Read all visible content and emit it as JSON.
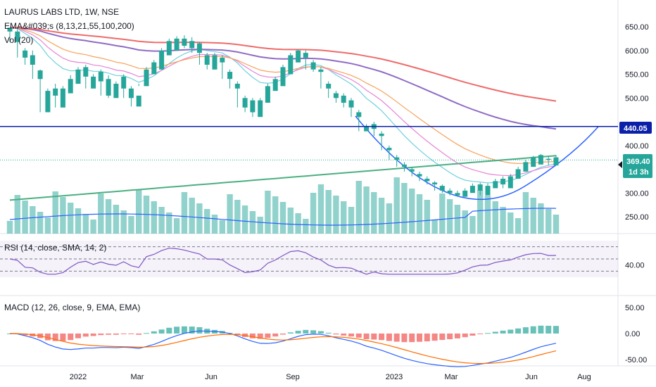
{
  "chart_data": {
    "type": "candlestick",
    "legend": {
      "title": "LAURUS LABS LTD, 1W, NSE",
      "ema": "EMA&#039;s (8,13,21,55,100,200)",
      "vol": "Vol (20)",
      "rsi": "RSI (14, close, SMA, 14, 2)",
      "macd": "MACD (12, 26, close, 9, EMA, EMA)"
    },
    "price_axis": {
      "ticks": [
        "650.00",
        "600.00",
        "550.00",
        "500.00",
        "400.00",
        "300.00",
        "250.00"
      ],
      "tick_values": [
        650,
        600,
        550,
        500,
        400,
        300,
        250
      ],
      "range": [
        195,
        710
      ]
    },
    "rsi_axis": {
      "ticks": [
        "40.00"
      ],
      "tick_values": [
        40
      ],
      "range": [
        20,
        80
      ],
      "bands": [
        30,
        50,
        70
      ]
    },
    "macd_axis": {
      "ticks": [
        "50.00",
        "0.00",
        "-50.00"
      ],
      "tick_values": [
        50,
        0,
        -50
      ],
      "range": [
        -62,
        62
      ]
    },
    "x_axis": {
      "labels": [
        "2022",
        "Mar",
        "Jun",
        "Sep",
        "2023",
        "Mar",
        "Jun",
        "Aug"
      ]
    },
    "support_line": {
      "value": 440.05,
      "label": "440.05",
      "color": "#0b1fa8"
    },
    "current_price": {
      "value": 369.4,
      "label": "369.40",
      "countdown": "1d 3h",
      "color": "#26a69a"
    },
    "colors": {
      "up": "#26a69a",
      "down": "#ef5350",
      "ema200": "#4caf82",
      "ema100": "#ef6b6b",
      "ema55": "#8f6cc4",
      "ema21": "#f7a25a",
      "ema13": "#e684d5",
      "ema8": "#6fd0dd",
      "curve": "#2962ff",
      "rsi": "#7e57c2",
      "macd": "#2962ff",
      "signal": "#ff6d00"
    },
    "candles": [
      [
        640,
        648,
        618,
        612,
        645
      ],
      [
        618,
        640,
        585,
        575,
        645
      ],
      [
        585,
        600,
        570,
        560,
        605
      ],
      [
        570,
        590,
        540,
        530,
        600
      ],
      [
        540,
        558,
        470,
        460,
        560
      ],
      [
        470,
        515,
        505,
        462,
        520
      ],
      [
        505,
        520,
        480,
        470,
        530
      ],
      [
        480,
        520,
        510,
        470,
        525
      ],
      [
        510,
        540,
        530,
        500,
        548
      ],
      [
        530,
        560,
        545,
        520,
        565
      ],
      [
        545,
        565,
        520,
        510,
        570
      ],
      [
        520,
        545,
        535,
        510,
        550
      ],
      [
        535,
        555,
        505,
        495,
        560
      ],
      [
        505,
        540,
        500,
        490,
        548
      ],
      [
        500,
        530,
        520,
        495,
        535
      ],
      [
        520,
        545,
        500,
        490,
        550
      ],
      [
        500,
        520,
        482,
        470,
        525
      ],
      [
        482,
        505,
        525,
        478,
        530
      ],
      [
        525,
        560,
        550,
        520,
        565
      ],
      [
        550,
        575,
        560,
        540,
        580
      ],
      [
        560,
        600,
        590,
        555,
        605
      ],
      [
        590,
        620,
        600,
        580,
        625
      ],
      [
        600,
        625,
        610,
        590,
        630
      ],
      [
        610,
        625,
        605,
        595,
        632
      ],
      [
        605,
        620,
        595,
        585,
        628
      ],
      [
        595,
        615,
        570,
        560,
        618
      ],
      [
        570,
        590,
        560,
        550,
        595
      ],
      [
        560,
        590,
        575,
        550,
        595
      ],
      [
        575,
        585,
        540,
        530,
        590
      ],
      [
        540,
        555,
        520,
        510,
        560
      ],
      [
        520,
        530,
        480,
        470,
        535
      ],
      [
        480,
        500,
        470,
        455,
        505
      ],
      [
        470,
        495,
        460,
        450,
        500
      ],
      [
        460,
        495,
        490,
        450,
        500
      ],
      [
        490,
        525,
        515,
        485,
        530
      ],
      [
        515,
        540,
        525,
        505,
        545
      ],
      [
        525,
        565,
        550,
        520,
        570
      ],
      [
        550,
        590,
        575,
        545,
        595
      ],
      [
        575,
        600,
        585,
        570,
        602
      ],
      [
        585,
        595,
        560,
        550,
        600
      ],
      [
        560,
        575,
        555,
        545,
        580
      ],
      [
        555,
        560,
        520,
        510,
        565
      ],
      [
        520,
        530,
        500,
        490,
        535
      ],
      [
        500,
        510,
        490,
        480,
        515
      ],
      [
        490,
        505,
        480,
        470,
        510
      ],
      [
        480,
        495,
        460,
        450,
        500
      ],
      [
        460,
        470,
        430,
        420,
        475
      ],
      [
        430,
        440,
        435,
        420,
        445
      ],
      [
        435,
        445,
        420,
        410,
        450
      ],
      [
        420,
        425,
        390,
        380,
        430
      ],
      [
        390,
        395,
        370,
        360,
        400
      ],
      [
        370,
        375,
        355,
        345,
        380
      ],
      [
        355,
        360,
        345,
        335,
        365
      ],
      [
        345,
        350,
        335,
        325,
        355
      ],
      [
        335,
        340,
        325,
        315,
        345
      ],
      [
        325,
        330,
        318,
        310,
        335
      ],
      [
        318,
        322,
        305,
        298,
        325
      ],
      [
        305,
        315,
        300,
        292,
        318
      ],
      [
        300,
        305,
        295,
        288,
        310
      ],
      [
        295,
        300,
        292,
        285,
        305
      ],
      [
        292,
        305,
        300,
        288,
        310
      ],
      [
        300,
        315,
        305,
        295,
        320
      ],
      [
        305,
        318,
        295,
        290,
        322
      ],
      [
        295,
        315,
        310,
        290,
        320
      ],
      [
        310,
        325,
        318,
        305,
        330
      ],
      [
        318,
        330,
        310,
        305,
        335
      ],
      [
        310,
        335,
        330,
        305,
        340
      ],
      [
        330,
        350,
        345,
        325,
        355
      ],
      [
        345,
        365,
        355,
        340,
        370
      ],
      [
        355,
        375,
        360,
        350,
        378
      ],
      [
        360,
        380,
        370,
        355,
        382
      ],
      [
        370,
        372,
        358,
        350,
        378
      ],
      [
        358,
        375,
        369,
        352,
        380
      ]
    ]
  }
}
